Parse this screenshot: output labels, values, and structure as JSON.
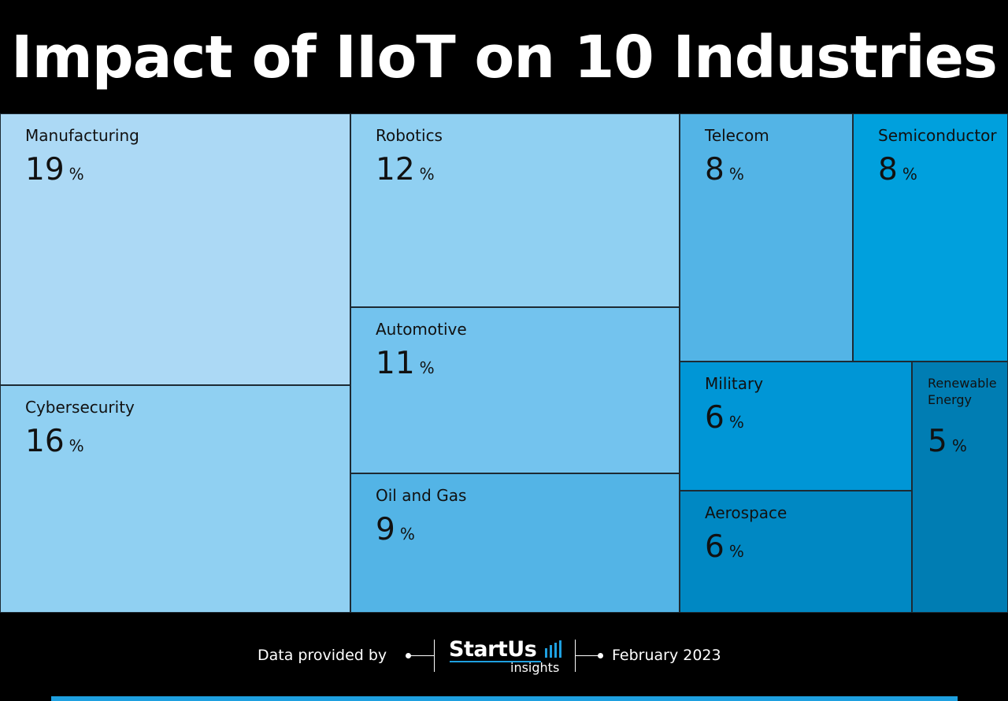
{
  "title": "Impact of IIoT on 10 Industries",
  "chart_data": {
    "type": "treemap",
    "title": "Impact of IIoT on 10 Industries",
    "unit": "%",
    "categories": [
      "Manufacturing",
      "Cybersecurity",
      "Robotics",
      "Automotive",
      "Oil and Gas",
      "Telecom",
      "Semiconductor",
      "Military",
      "Aerospace",
      "Renewable Energy"
    ],
    "values": [
      19,
      16,
      12,
      11,
      9,
      8,
      8,
      6,
      6,
      5
    ],
    "colors": [
      "#acd9f5",
      "#90d0f2",
      "#90d0f2",
      "#73c3ee",
      "#53b4e6",
      "#53b4e6",
      "#00a0dd",
      "#0096d6",
      "#0088c3",
      "#007db3"
    ]
  },
  "footer": {
    "provided_by": "Data provided by",
    "brand": "StartUs",
    "brand_sub": "insights",
    "date": "February 2023"
  },
  "colors": {
    "background": "#000000",
    "accent": "#1ea0e0"
  }
}
